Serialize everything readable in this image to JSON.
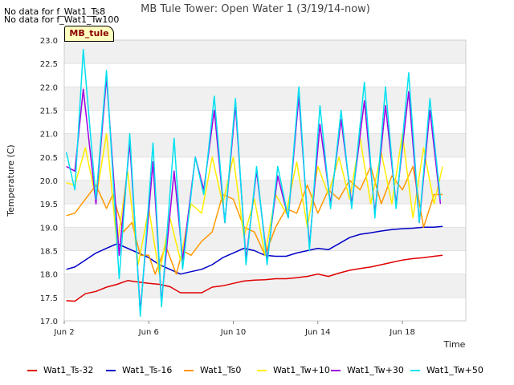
{
  "notes": [
    "No data for f_Wat1_Ts8",
    "No data for f_Wat1_Tw100"
  ],
  "badge": "MB_tule",
  "chart_data": {
    "type": "line",
    "title": "MB Tule Tower: Open Water 1 (3/19/14-now)",
    "xlabel": "Time",
    "ylabel": "Temperature (C)",
    "ylim": [
      17.0,
      23.0
    ],
    "yticks": [
      17.0,
      17.5,
      18.0,
      18.5,
      19.0,
      19.5,
      20.0,
      20.5,
      21.0,
      21.5,
      22.0,
      22.5,
      23.0
    ],
    "xlim": [
      2,
      21
    ],
    "xticks": [
      {
        "x": 2,
        "label": "Jun 2"
      },
      {
        "x": 6,
        "label": "Jun 6"
      },
      {
        "x": 10,
        "label": "Jun 10"
      },
      {
        "x": 14,
        "label": "Jun 14"
      },
      {
        "x": 18,
        "label": "Jun 18"
      }
    ],
    "series": [
      {
        "name": "Wat1_Ts-32",
        "color": "#e00000",
        "points": [
          [
            2.1,
            17.43
          ],
          [
            2.5,
            17.42
          ],
          [
            3.0,
            17.58
          ],
          [
            3.5,
            17.63
          ],
          [
            4.0,
            17.72
          ],
          [
            4.5,
            17.78
          ],
          [
            5.0,
            17.86
          ],
          [
            5.5,
            17.83
          ],
          [
            6.0,
            17.8
          ],
          [
            6.5,
            17.78
          ],
          [
            7.0,
            17.73
          ],
          [
            7.5,
            17.6
          ],
          [
            8.0,
            17.6
          ],
          [
            8.5,
            17.6
          ],
          [
            9.0,
            17.72
          ],
          [
            9.5,
            17.75
          ],
          [
            10.0,
            17.8
          ],
          [
            10.5,
            17.85
          ],
          [
            11.0,
            17.87
          ],
          [
            11.5,
            17.88
          ],
          [
            12.0,
            17.9
          ],
          [
            12.5,
            17.9
          ],
          [
            13.0,
            17.92
          ],
          [
            13.5,
            17.95
          ],
          [
            14.0,
            18.0
          ],
          [
            14.5,
            17.95
          ],
          [
            15.0,
            18.02
          ],
          [
            15.5,
            18.08
          ],
          [
            16.0,
            18.12
          ],
          [
            16.5,
            18.15
          ],
          [
            17.0,
            18.2
          ],
          [
            17.5,
            18.25
          ],
          [
            18.0,
            18.3
          ],
          [
            18.5,
            18.33
          ],
          [
            19.0,
            18.35
          ],
          [
            19.5,
            18.38
          ],
          [
            19.9,
            18.4
          ]
        ]
      },
      {
        "name": "Wat1_Ts-16",
        "color": "#0000c8",
        "points": [
          [
            2.1,
            18.1
          ],
          [
            2.5,
            18.15
          ],
          [
            3.0,
            18.3
          ],
          [
            3.5,
            18.45
          ],
          [
            4.0,
            18.55
          ],
          [
            4.5,
            18.65
          ],
          [
            5.0,
            18.55
          ],
          [
            5.5,
            18.45
          ],
          [
            6.0,
            18.35
          ],
          [
            6.5,
            18.2
          ],
          [
            7.0,
            18.1
          ],
          [
            7.5,
            18.0
          ],
          [
            8.0,
            18.05
          ],
          [
            8.5,
            18.1
          ],
          [
            9.0,
            18.2
          ],
          [
            9.5,
            18.35
          ],
          [
            10.0,
            18.45
          ],
          [
            10.5,
            18.55
          ],
          [
            11.0,
            18.5
          ],
          [
            11.5,
            18.4
          ],
          [
            12.0,
            18.38
          ],
          [
            12.5,
            18.38
          ],
          [
            13.0,
            18.45
          ],
          [
            13.5,
            18.5
          ],
          [
            14.0,
            18.55
          ],
          [
            14.5,
            18.52
          ],
          [
            15.0,
            18.65
          ],
          [
            15.5,
            18.78
          ],
          [
            16.0,
            18.85
          ],
          [
            16.5,
            18.88
          ],
          [
            17.0,
            18.92
          ],
          [
            17.5,
            18.95
          ],
          [
            18.0,
            18.97
          ],
          [
            18.5,
            18.98
          ],
          [
            19.0,
            19.0
          ],
          [
            19.5,
            19.0
          ],
          [
            19.9,
            19.02
          ]
        ]
      },
      {
        "name": "Wat1_Ts0",
        "color": "#ff9900",
        "points": [
          [
            2.1,
            19.25
          ],
          [
            2.5,
            19.3
          ],
          [
            3.0,
            19.6
          ],
          [
            3.5,
            19.9
          ],
          [
            4.0,
            19.4
          ],
          [
            4.3,
            19.7
          ],
          [
            4.8,
            18.9
          ],
          [
            5.2,
            19.1
          ],
          [
            5.6,
            18.4
          ],
          [
            6.0,
            18.4
          ],
          [
            6.3,
            18.0
          ],
          [
            6.8,
            18.6
          ],
          [
            7.3,
            18.0
          ],
          [
            7.6,
            18.5
          ],
          [
            8.0,
            18.4
          ],
          [
            8.5,
            18.7
          ],
          [
            9.0,
            18.9
          ],
          [
            9.5,
            19.7
          ],
          [
            10.0,
            19.6
          ],
          [
            10.5,
            19.0
          ],
          [
            11.0,
            18.9
          ],
          [
            11.5,
            18.4
          ],
          [
            12.0,
            19.0
          ],
          [
            12.5,
            19.4
          ],
          [
            13.0,
            19.3
          ],
          [
            13.5,
            19.9
          ],
          [
            14.0,
            19.3
          ],
          [
            14.5,
            19.8
          ],
          [
            15.0,
            19.6
          ],
          [
            15.5,
            20.0
          ],
          [
            16.0,
            19.8
          ],
          [
            16.5,
            20.3
          ],
          [
            17.0,
            19.5
          ],
          [
            17.5,
            20.1
          ],
          [
            18.0,
            19.8
          ],
          [
            18.5,
            20.3
          ],
          [
            19.0,
            19.0
          ],
          [
            19.5,
            19.7
          ],
          [
            19.9,
            19.7
          ]
        ]
      },
      {
        "name": "Wat1_Tw+10",
        "color": "#ffee00",
        "points": [
          [
            2.1,
            19.95
          ],
          [
            2.5,
            19.9
          ],
          [
            3.0,
            20.7
          ],
          [
            3.5,
            19.6
          ],
          [
            4.0,
            21.0
          ],
          [
            4.5,
            18.6
          ],
          [
            5.0,
            20.2
          ],
          [
            5.5,
            18.2
          ],
          [
            6.0,
            19.4
          ],
          [
            6.5,
            18.0
          ],
          [
            7.0,
            19.2
          ],
          [
            7.5,
            18.3
          ],
          [
            8.0,
            19.5
          ],
          [
            8.5,
            19.3
          ],
          [
            9.0,
            20.5
          ],
          [
            9.5,
            19.5
          ],
          [
            10.0,
            20.5
          ],
          [
            10.5,
            18.8
          ],
          [
            11.0,
            19.6
          ],
          [
            11.5,
            18.4
          ],
          [
            12.0,
            19.7
          ],
          [
            12.5,
            19.3
          ],
          [
            13.0,
            20.4
          ],
          [
            13.5,
            19.0
          ],
          [
            14.0,
            20.3
          ],
          [
            14.5,
            19.7
          ],
          [
            15.0,
            20.5
          ],
          [
            15.5,
            19.6
          ],
          [
            16.0,
            20.9
          ],
          [
            16.5,
            19.5
          ],
          [
            17.0,
            20.6
          ],
          [
            17.5,
            19.5
          ],
          [
            18.0,
            21.0
          ],
          [
            18.5,
            19.2
          ],
          [
            19.0,
            20.7
          ],
          [
            19.5,
            19.5
          ],
          [
            19.9,
            20.3
          ]
        ]
      },
      {
        "name": "Wat1_Tw+30",
        "color": "#a000e0",
        "points": [
          [
            2.1,
            20.3
          ],
          [
            2.5,
            20.2
          ],
          [
            2.9,
            21.95
          ],
          [
            3.5,
            19.5
          ],
          [
            4.0,
            22.2
          ],
          [
            4.6,
            18.4
          ],
          [
            5.1,
            20.8
          ],
          [
            5.6,
            17.2
          ],
          [
            6.2,
            20.4
          ],
          [
            6.6,
            17.4
          ],
          [
            7.2,
            20.2
          ],
          [
            7.6,
            18.3
          ],
          [
            8.2,
            20.5
          ],
          [
            8.6,
            19.8
          ],
          [
            9.1,
            21.5
          ],
          [
            9.6,
            19.1
          ],
          [
            10.1,
            21.6
          ],
          [
            10.6,
            18.3
          ],
          [
            11.1,
            20.2
          ],
          [
            11.6,
            18.3
          ],
          [
            12.1,
            20.1
          ],
          [
            12.6,
            19.2
          ],
          [
            13.1,
            21.8
          ],
          [
            13.6,
            18.6
          ],
          [
            14.1,
            21.2
          ],
          [
            14.6,
            19.5
          ],
          [
            15.1,
            21.3
          ],
          [
            15.6,
            19.5
          ],
          [
            16.2,
            21.7
          ],
          [
            16.7,
            19.3
          ],
          [
            17.2,
            21.6
          ],
          [
            17.7,
            19.5
          ],
          [
            18.3,
            21.9
          ],
          [
            18.8,
            19.1
          ],
          [
            19.3,
            21.5
          ],
          [
            19.8,
            19.5
          ]
        ]
      },
      {
        "name": "Wat1_Tw+50",
        "color": "#00e0f0",
        "points": [
          [
            2.1,
            20.6
          ],
          [
            2.5,
            19.8
          ],
          [
            2.9,
            22.8
          ],
          [
            3.5,
            19.6
          ],
          [
            4.0,
            22.35
          ],
          [
            4.6,
            17.9
          ],
          [
            5.1,
            21.0
          ],
          [
            5.6,
            17.1
          ],
          [
            6.2,
            20.8
          ],
          [
            6.6,
            17.3
          ],
          [
            7.2,
            20.9
          ],
          [
            7.6,
            18.1
          ],
          [
            8.2,
            20.5
          ],
          [
            8.6,
            19.7
          ],
          [
            9.1,
            21.8
          ],
          [
            9.6,
            19.1
          ],
          [
            10.1,
            21.75
          ],
          [
            10.6,
            18.2
          ],
          [
            11.1,
            20.3
          ],
          [
            11.6,
            18.2
          ],
          [
            12.1,
            20.3
          ],
          [
            12.6,
            19.2
          ],
          [
            13.1,
            22.0
          ],
          [
            13.6,
            18.5
          ],
          [
            14.1,
            21.6
          ],
          [
            14.6,
            19.4
          ],
          [
            15.1,
            21.5
          ],
          [
            15.6,
            19.4
          ],
          [
            16.2,
            22.1
          ],
          [
            16.7,
            19.2
          ],
          [
            17.2,
            22.0
          ],
          [
            17.7,
            19.4
          ],
          [
            18.3,
            22.3
          ],
          [
            18.8,
            19.1
          ],
          [
            19.3,
            21.75
          ],
          [
            19.8,
            19.6
          ]
        ]
      }
    ]
  }
}
